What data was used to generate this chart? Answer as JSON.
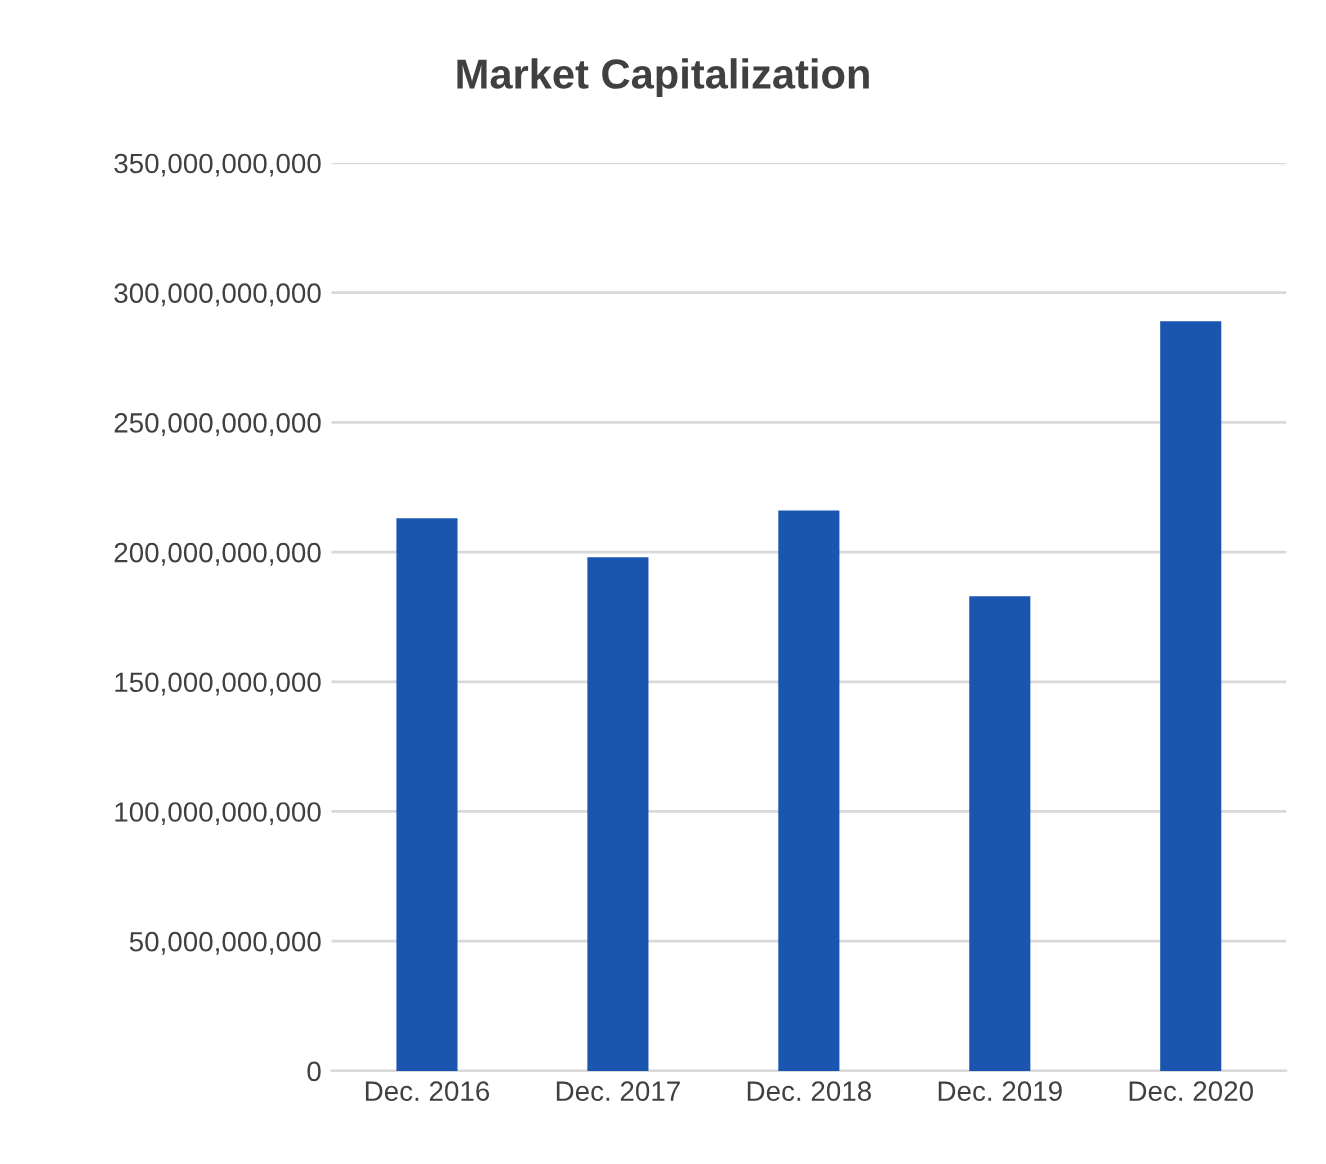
{
  "chart_data": {
    "type": "bar",
    "title": "Market Capitalization",
    "categories": [
      "Dec. 2016",
      "Dec. 2017",
      "Dec. 2018",
      "Dec. 2019",
      "Dec. 2020"
    ],
    "values": [
      213000000000,
      198000000000,
      216000000000,
      183000000000,
      289000000000
    ],
    "color": "#1a55b0",
    "ylim": [
      0,
      350000000000
    ],
    "yticks": [
      {
        "value": 0,
        "label": "0"
      },
      {
        "value": 50000000000,
        "label": "50,000,000,000"
      },
      {
        "value": 100000000000,
        "label": "100,000,000,000"
      },
      {
        "value": 150000000000,
        "label": "150,000,000,000"
      },
      {
        "value": 200000000000,
        "label": "200,000,000,000"
      },
      {
        "value": 250000000000,
        "label": "250,000,000,000"
      },
      {
        "value": 300000000000,
        "label": "300,000,000,000"
      },
      {
        "value": 350000000000,
        "label": "350,000,000,000"
      }
    ],
    "grid": "y"
  }
}
